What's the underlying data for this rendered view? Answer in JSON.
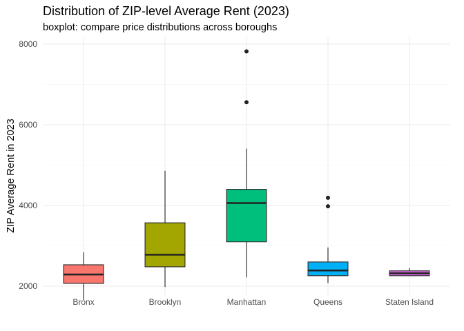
{
  "chart_data": {
    "type": "boxplot",
    "title": "Distribution of ZIP-level Average Rent (2023)",
    "subtitle": "boxplot: compare price distributions across boroughs",
    "xlabel": "",
    "ylabel": "ZIP Average Rent in 2023",
    "ylim": [
      1500,
      8250
    ],
    "y_ticks": [
      2000,
      4000,
      6000,
      8000
    ],
    "y_tick_labels": [
      "2000",
      "4000",
      "6000",
      "8000"
    ],
    "grid": true,
    "legend": "none",
    "categories": [
      "Bronx",
      "Brooklyn",
      "Manhattan",
      "Queens",
      "Staten Island"
    ],
    "boxes": [
      {
        "category": "Bronx",
        "color": "#F8766D",
        "whisker_low": 1660,
        "q1": 2070,
        "median": 2290,
        "q3": 2530,
        "whisker_high": 2840,
        "outliers": []
      },
      {
        "category": "Brooklyn",
        "color": "#A3A500",
        "whisker_low": 1980,
        "q1": 2480,
        "median": 2780,
        "q3": 3570,
        "whisker_high": 4860,
        "outliers": []
      },
      {
        "category": "Manhattan",
        "color": "#00BF7D",
        "whisker_low": 2220,
        "q1": 3100,
        "median": 4060,
        "q3": 4400,
        "whisker_high": 5410,
        "outliers": [
          6560,
          7820
        ]
      },
      {
        "category": "Queens",
        "color": "#00B0F6",
        "whisker_low": 2080,
        "q1": 2260,
        "median": 2390,
        "q3": 2600,
        "whisker_high": 2960,
        "outliers": [
          3980,
          4190
        ]
      },
      {
        "category": "Staten Island",
        "color": "#E76BF3",
        "whisker_low": 2250,
        "q1": 2260,
        "median": 2320,
        "q3": 2380,
        "whisker_high": 2450,
        "outliers": []
      }
    ]
  }
}
